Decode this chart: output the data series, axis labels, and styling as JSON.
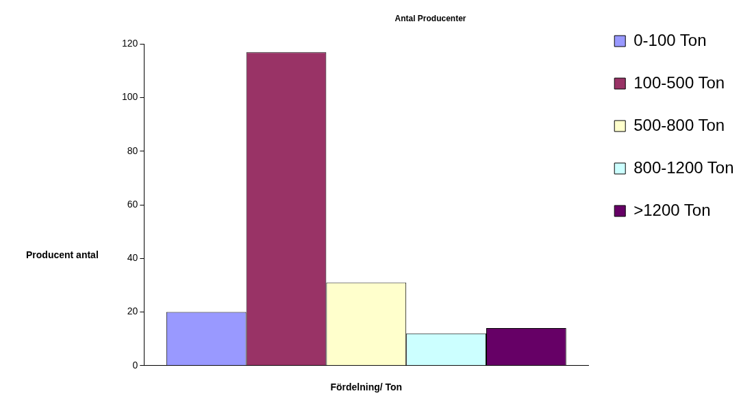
{
  "chart_data": {
    "type": "bar",
    "title": "Antal Producenter",
    "xlabel": "Fördelning/ Ton",
    "ylabel": "Producent antal",
    "categories": [
      null
    ],
    "series": [
      {
        "name": "0-100 Ton",
        "color": "#9999ff",
        "values": [
          20
        ]
      },
      {
        "name": "100-500 Ton",
        "color": "#993366",
        "values": [
          117
        ]
      },
      {
        "name": "500-800 Ton",
        "color": "#ffffcc",
        "values": [
          31
        ]
      },
      {
        "name": "800-1200 Ton",
        "color": "#ccffff",
        "values": [
          12
        ]
      },
      {
        "name": ">1200 Ton",
        "color": "#660066",
        "values": [
          14
        ]
      }
    ],
    "ylim": [
      0,
      120
    ],
    "yticks": [
      0,
      20,
      40,
      60,
      80,
      100,
      120
    ],
    "grid": false,
    "legend": "right"
  }
}
